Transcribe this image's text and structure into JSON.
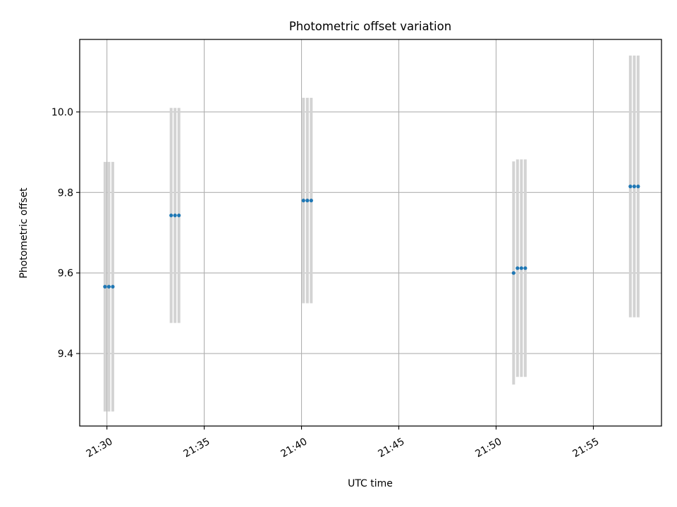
{
  "chart_data": {
    "type": "scatter",
    "title": "Photometric offset variation",
    "xlabel": "UTC time",
    "ylabel": "Photometric offset",
    "xlim": [
      "21:28:36",
      "21:58:30"
    ],
    "ylim": [
      9.22,
      10.18
    ],
    "x_ticks": [
      "21:30",
      "21:35",
      "21:40",
      "21:45",
      "21:50",
      "21:55"
    ],
    "y_ticks": [
      9.4,
      9.6,
      9.8,
      10.0
    ],
    "y_tick_labels": [
      "9.4",
      "9.6",
      "9.8",
      "10.0"
    ],
    "grid": true,
    "points": [
      {
        "x": "21:29:54",
        "y": 9.566,
        "err": 0.31
      },
      {
        "x": "21:30:06",
        "y": 9.566,
        "err": 0.31
      },
      {
        "x": "21:30:18",
        "y": 9.566,
        "err": 0.31
      },
      {
        "x": "21:33:18",
        "y": 9.743,
        "err": 0.267
      },
      {
        "x": "21:33:30",
        "y": 9.743,
        "err": 0.267
      },
      {
        "x": "21:33:42",
        "y": 9.743,
        "err": 0.267
      },
      {
        "x": "21:40:06",
        "y": 9.78,
        "err": 0.255
      },
      {
        "x": "21:40:18",
        "y": 9.78,
        "err": 0.255
      },
      {
        "x": "21:40:30",
        "y": 9.78,
        "err": 0.255
      },
      {
        "x": "21:50:54",
        "y": 9.6,
        "err": 0.277
      },
      {
        "x": "21:51:06",
        "y": 9.612,
        "err": 0.27
      },
      {
        "x": "21:51:18",
        "y": 9.612,
        "err": 0.27
      },
      {
        "x": "21:51:30",
        "y": 9.612,
        "err": 0.27
      },
      {
        "x": "21:56:54",
        "y": 9.815,
        "err": 0.325
      },
      {
        "x": "21:57:06",
        "y": 9.815,
        "err": 0.325
      },
      {
        "x": "21:57:18",
        "y": 9.815,
        "err": 0.325
      }
    ],
    "colors": {
      "points": "#1f77b4",
      "errorbars": "#d3d3d3",
      "grid": "#b0b0b0",
      "axes": "#000000"
    }
  }
}
